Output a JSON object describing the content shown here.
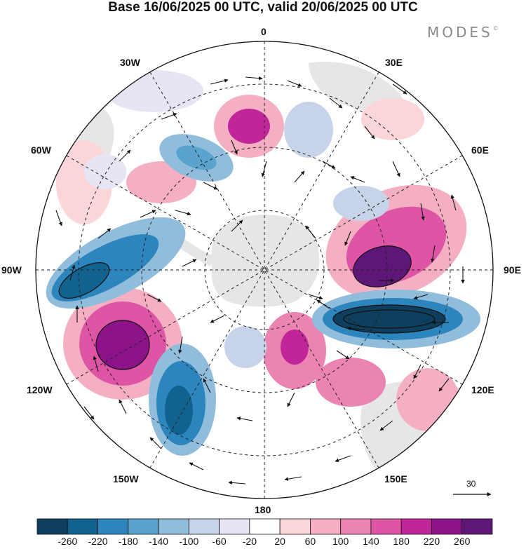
{
  "title": "Base 16/06/2025 00 UTC, valid 20/06/2025 00 UTC",
  "brand": {
    "text": "MODES",
    "mark": "©"
  },
  "longitude_labels": {
    "top": "0",
    "bottom": "180",
    "e30": "30E",
    "e60": "60E",
    "e90": "90E",
    "e120": "120E",
    "e150": "150E",
    "w30": "30W",
    "w60": "60W",
    "w90": "90W",
    "w120": "120W",
    "w150": "150W"
  },
  "reference_vector": {
    "label": "30"
  },
  "colorbar": {
    "labels": [
      "-260",
      "-220",
      "-180",
      "-140",
      "-100",
      "-60",
      "-20",
      "20",
      "60",
      "100",
      "140",
      "180",
      "220",
      "260"
    ],
    "colors": [
      "#0e3f5e",
      "#11628e",
      "#2c85bd",
      "#5aa3cf",
      "#91bddc",
      "#c7d3e8",
      "#e6e5f3",
      "#ffffff",
      "#fbd6d8",
      "#f4b0c2",
      "#ec84b2",
      "#df55a5",
      "#c0269a",
      "#8c1389",
      "#5e1779"
    ]
  },
  "map": {
    "projection": "south-polar-stereographic",
    "field_colors": {
      "neg_extreme": "#0e3f5e",
      "neg_strong": "#2c85bd",
      "neg_mid": "#91bddc",
      "neg_weak": "#c7d3e8",
      "neg_light": "#e6e5f3",
      "pos_light": "#fbd6d8",
      "pos_weak": "#f4b0c2",
      "pos_mid": "#ec84b2",
      "pos_strong": "#c0269a",
      "pos_extreme": "#5e1779",
      "land": "#e6e6e6"
    }
  }
}
